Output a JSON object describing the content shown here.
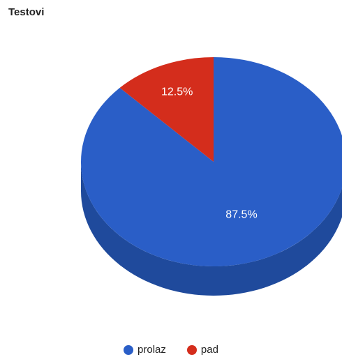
{
  "chart_data": {
    "type": "pie",
    "title": "Testovi",
    "three_d": true,
    "legend_position": "bottom",
    "slices": [
      {
        "name": "prolaz",
        "value": 87.5,
        "label": "87.5%",
        "color": "#2a5ec7",
        "side_color": "#1f4a9c"
      },
      {
        "name": "pad",
        "value": 12.5,
        "label": "12.5%",
        "color": "#d42d1c",
        "side_color": "#a3210f"
      }
    ]
  }
}
